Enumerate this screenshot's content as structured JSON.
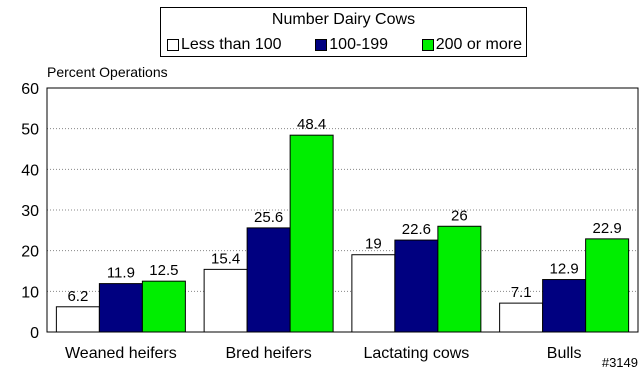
{
  "chart_data": {
    "type": "bar",
    "title": "",
    "legend_title": "Number Dairy Cows",
    "legend_placement": "top-center",
    "xlabel": "",
    "ylabel": "Percent Operations",
    "ylim": [
      0,
      60
    ],
    "yticks": [
      0,
      10,
      20,
      30,
      40,
      50,
      60
    ],
    "grid": "horizontal dotted",
    "categories": [
      "Weaned heifers",
      "Bred heifers",
      "Lactating cows",
      "Bulls"
    ],
    "series": [
      {
        "name": "Less than 100",
        "color": "#ffffff",
        "values": [
          6.2,
          15.4,
          19,
          7.1
        ],
        "labels": [
          "6.2",
          "15.4",
          "19",
          "7.1"
        ]
      },
      {
        "name": "100-199",
        "color": "#000080",
        "values": [
          11.9,
          25.6,
          22.6,
          12.9
        ],
        "labels": [
          "11.9",
          "25.6",
          "22.6",
          "12.9"
        ]
      },
      {
        "name": "200 or more",
        "color": "#00ee00",
        "values": [
          12.5,
          48.4,
          26,
          22.9
        ],
        "labels": [
          "12.5",
          "48.4",
          "26",
          "22.9"
        ]
      }
    ],
    "footnote": "#3149"
  }
}
